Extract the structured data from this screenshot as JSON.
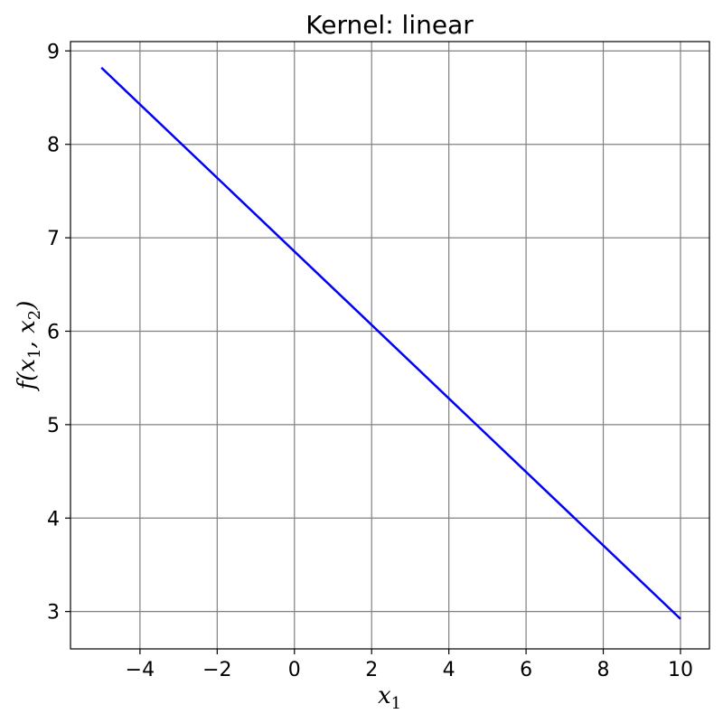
{
  "chart_data": {
    "type": "line",
    "title": "Kernel: linear",
    "xlabel": {
      "base": "x",
      "sub": "1"
    },
    "ylabel": {
      "func": "f(",
      "v1": "x",
      "s1": "1",
      "sep": ", ",
      "v2": "x",
      "s2": "2",
      "close": ")"
    },
    "xlim": [
      -5.8,
      10.75
    ],
    "ylim": [
      2.6,
      9.1
    ],
    "xticks": [
      -4,
      -2,
      0,
      2,
      4,
      6,
      8,
      10
    ],
    "xtick_labels": [
      "−4",
      "−2",
      "0",
      "2",
      "4",
      "6",
      "8",
      "10"
    ],
    "yticks": [
      3,
      4,
      5,
      6,
      7,
      8,
      9
    ],
    "ytick_labels": [
      "3",
      "4",
      "5",
      "6",
      "7",
      "8",
      "9"
    ],
    "grid": true,
    "series": [
      {
        "x": [
          -5,
          10
        ],
        "y": [
          8.82,
          2.92
        ],
        "color": "#0000ff"
      }
    ]
  }
}
